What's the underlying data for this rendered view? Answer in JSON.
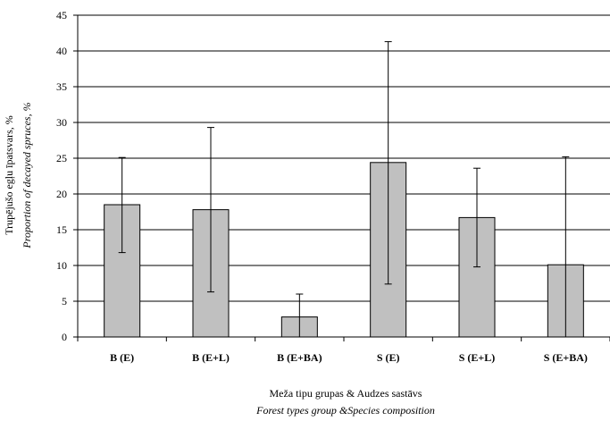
{
  "chart_data": {
    "type": "bar",
    "categories": [
      "B (E)",
      "B (E+L)",
      "B (E+BA)",
      "S (E)",
      "S (E+L)",
      "S (E+BA)"
    ],
    "values": [
      18.5,
      17.8,
      2.8,
      24.4,
      16.7,
      10.1
    ],
    "error_high": [
      25.1,
      29.3,
      6.0,
      41.3,
      23.6,
      25.2
    ],
    "error_low": [
      11.8,
      6.3,
      0.0,
      7.4,
      9.8,
      0.0
    ],
    "ylim": [
      0,
      45
    ],
    "yticks": [
      0,
      5,
      10,
      15,
      20,
      25,
      30,
      35,
      40,
      45
    ],
    "grid": true,
    "bar_color": "#c0c0c0",
    "ylabel": "Trupējušo egļu īpatsvars, %",
    "ylabel_en": "Proportion of decayed spruces, %",
    "xlabel": "Meža tipu grupas & Audzes sastāvs",
    "xlabel_en": "Forest types group &Species composition"
  }
}
